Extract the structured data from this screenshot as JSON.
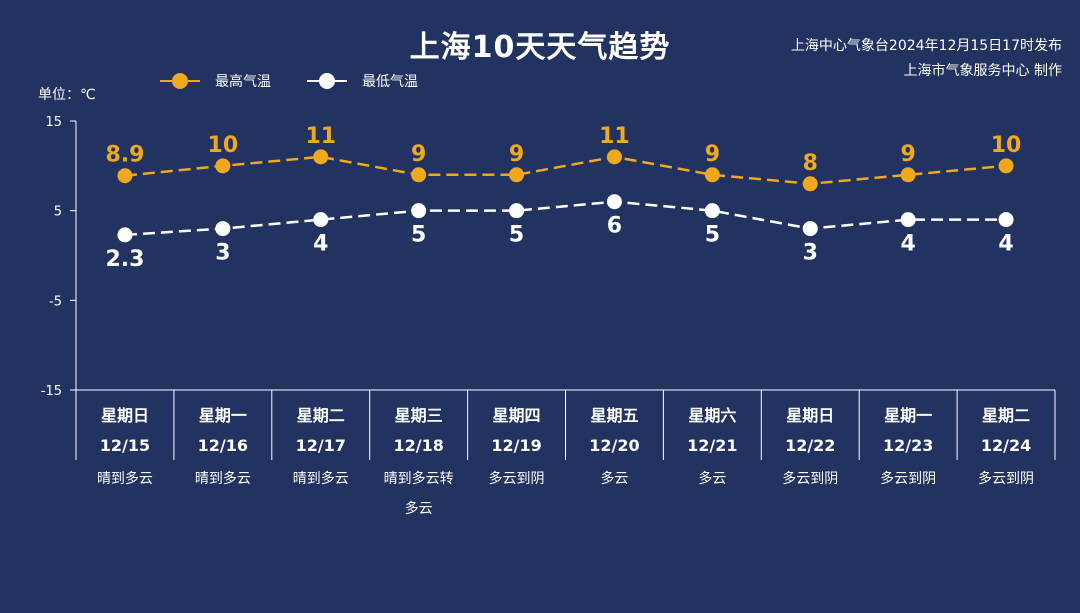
{
  "title": "上海10天天气趋势",
  "issuer": {
    "line1": "上海中心气象台2024年12月15日17时发布",
    "line2": "上海市气象服务中心 制作"
  },
  "unit_label": "单位：℃",
  "legend": {
    "high": "最高气温",
    "low": "最低气温"
  },
  "colors": {
    "background": "#223261",
    "high": "#f0a81c",
    "low": "#ffffff",
    "text": "#ffffff"
  },
  "chart_data": {
    "type": "line",
    "ylim": [
      -15,
      15
    ],
    "yticks": [
      "15",
      "5",
      "-5",
      "-15"
    ],
    "grid": false,
    "legend_position": "top-left",
    "categories": [
      {
        "day": "星期日",
        "date": "12/15",
        "weather": [
          "晴到多云"
        ]
      },
      {
        "day": "星期一",
        "date": "12/16",
        "weather": [
          "晴到多云"
        ]
      },
      {
        "day": "星期二",
        "date": "12/17",
        "weather": [
          "晴到多云"
        ]
      },
      {
        "day": "星期三",
        "date": "12/18",
        "weather": [
          "晴到多云转",
          "多云"
        ]
      },
      {
        "day": "星期四",
        "date": "12/19",
        "weather": [
          "多云到阴"
        ]
      },
      {
        "day": "星期五",
        "date": "12/20",
        "weather": [
          "多云"
        ]
      },
      {
        "day": "星期六",
        "date": "12/21",
        "weather": [
          "多云"
        ]
      },
      {
        "day": "星期日",
        "date": "12/22",
        "weather": [
          "多云到阴"
        ]
      },
      {
        "day": "星期一",
        "date": "12/23",
        "weather": [
          "多云到阴"
        ]
      },
      {
        "day": "星期二",
        "date": "12/24",
        "weather": [
          "多云到阴"
        ]
      }
    ],
    "series": [
      {
        "name": "最高气温",
        "values": [
          8.9,
          10,
          11,
          9,
          9,
          11,
          9,
          8,
          9,
          10
        ],
        "labels": [
          "8.9",
          "10",
          "11",
          "9",
          "9",
          "11",
          "9",
          "8",
          "9",
          "10"
        ]
      },
      {
        "name": "最低气温",
        "values": [
          2.3,
          3,
          4,
          5,
          5,
          6,
          5,
          3,
          4,
          4
        ],
        "labels": [
          "2.3",
          "3",
          "4",
          "5",
          "5",
          "6",
          "5",
          "3",
          "4",
          "4"
        ]
      }
    ]
  }
}
